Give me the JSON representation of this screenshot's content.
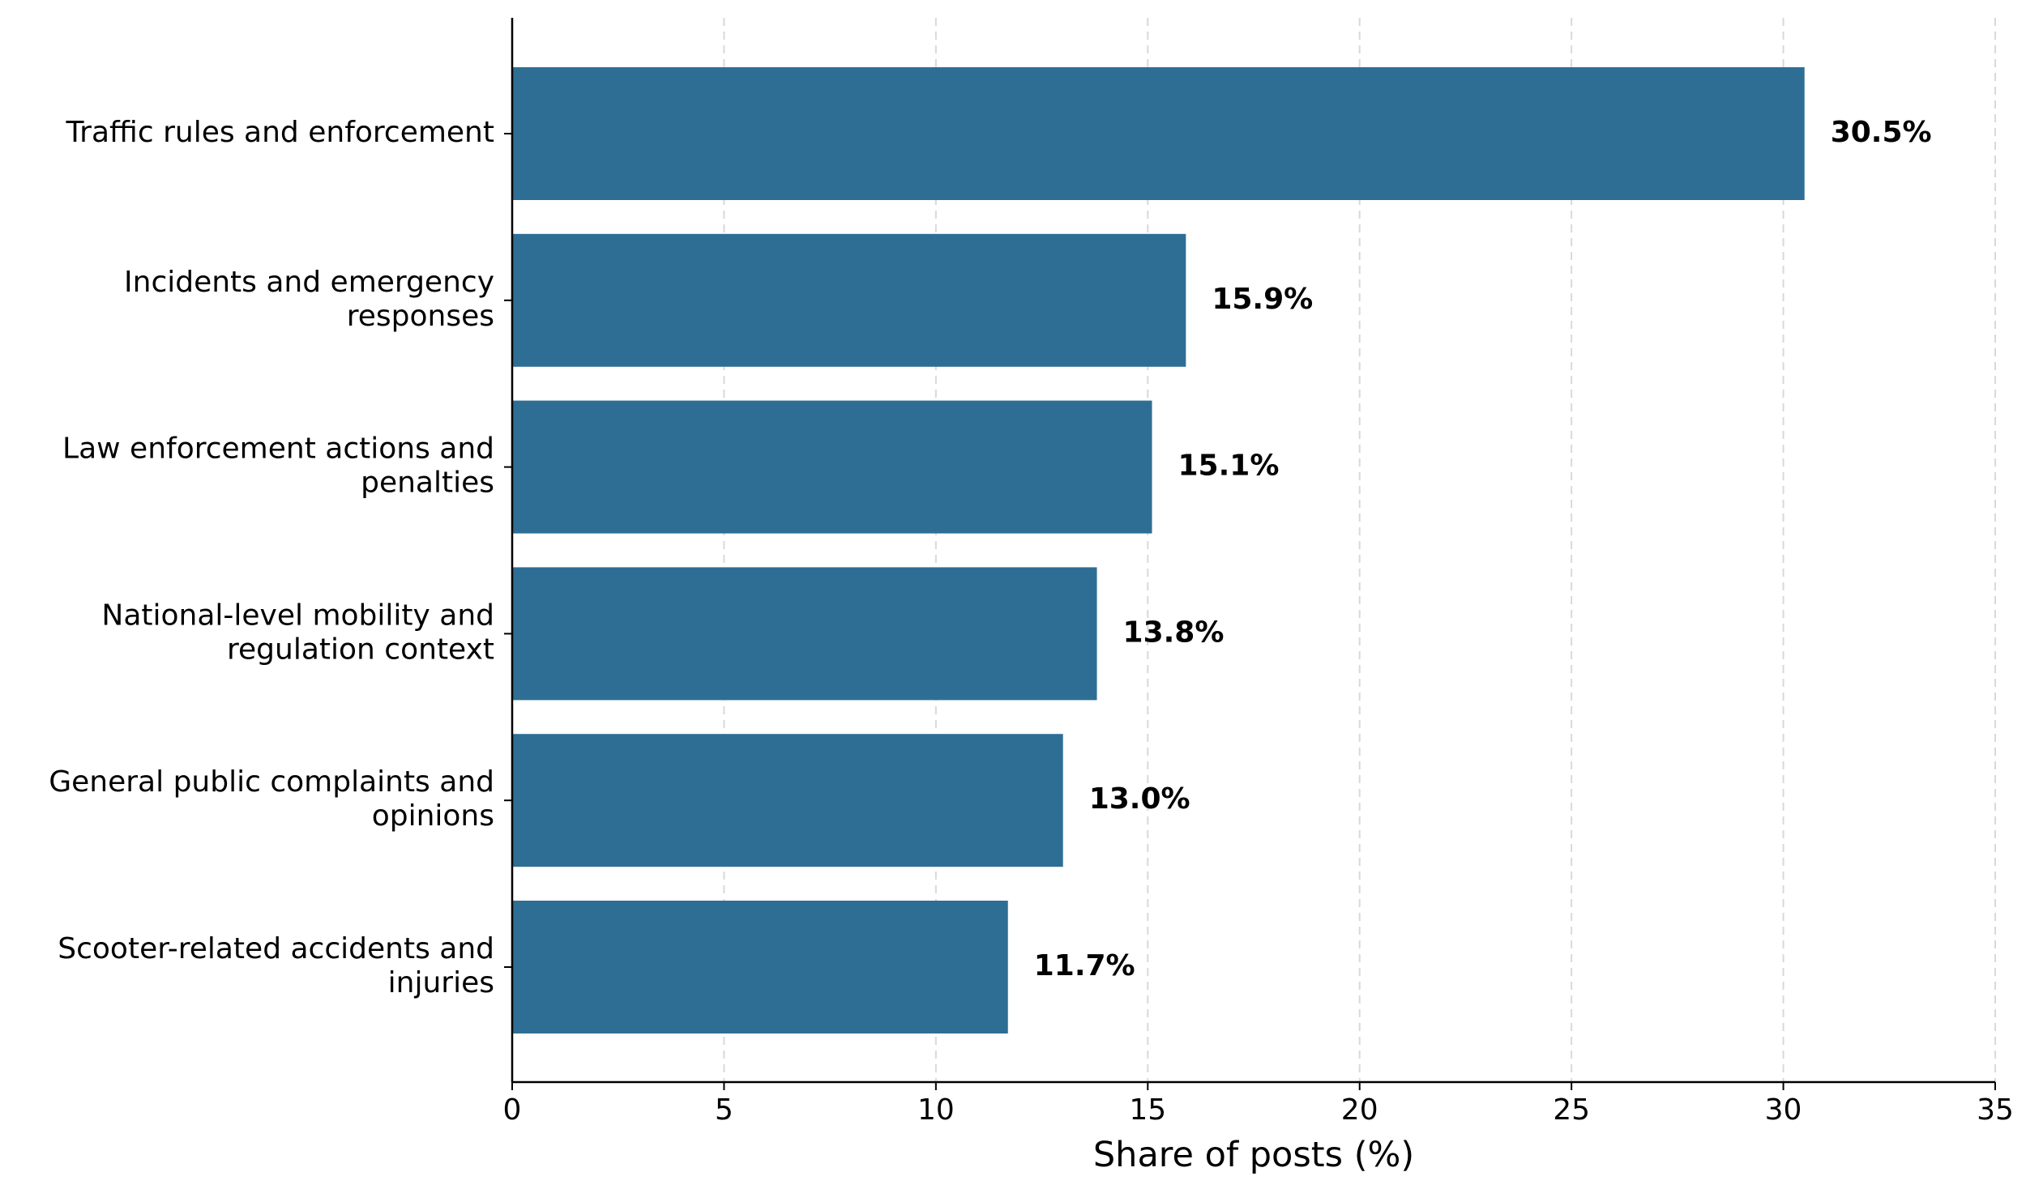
{
  "chart_data": {
    "type": "bar",
    "orientation": "horizontal",
    "title": "",
    "xlabel": "Share of posts (%)",
    "ylabel": "",
    "xlim": [
      0,
      35
    ],
    "xticks": [
      0,
      5,
      10,
      15,
      20,
      25,
      30,
      35
    ],
    "grid": "x-dashed",
    "bar_color": "#2e6e94",
    "categories": [
      [
        "Traffic rules and enforcement"
      ],
      [
        "Incidents and emergency",
        "responses"
      ],
      [
        "Law enforcement actions and",
        "penalties"
      ],
      [
        "National-level mobility and",
        "regulation context"
      ],
      [
        "General public complaints and",
        "opinions"
      ],
      [
        "Scooter-related accidents and",
        "injuries"
      ]
    ],
    "values": [
      30.5,
      15.9,
      15.1,
      13.8,
      13.0,
      11.7
    ],
    "value_labels": [
      "30.5%",
      "15.9%",
      "15.1%",
      "13.8%",
      "13.0%",
      "11.7%"
    ]
  }
}
